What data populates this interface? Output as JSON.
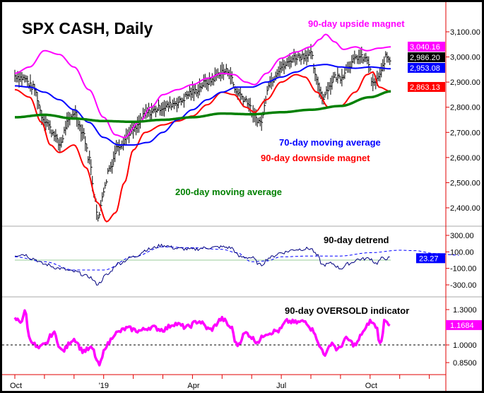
{
  "chart_data": [
    {
      "type": "line",
      "title": "SPX CASH, Daily",
      "x_unit": "months since Oct 2018",
      "xticks": [
        {
          "m": 0,
          "label": "Oct"
        },
        {
          "m": 3,
          "label": "'19"
        },
        {
          "m": 6,
          "label": "Apr"
        },
        {
          "m": 9,
          "label": "Jul"
        },
        {
          "m": 12,
          "label": "Oct"
        }
      ],
      "ylim": [
        2330,
        3130
      ],
      "yticks": [
        "2,400.00",
        "2,500.00",
        "2,600.00",
        "2,700.00",
        "2,800.00",
        "2,900.00",
        "3,000.00",
        "3,100.00"
      ],
      "ytick_values": [
        2400,
        2500,
        2600,
        2700,
        2800,
        2900,
        3000,
        3100
      ],
      "annotations": [
        "90-day upside magnet",
        "70-day moving average",
        "90-day downside magnet",
        "200-day moving average"
      ],
      "last_values": [
        {
          "label": "3,040.16",
          "color": "#ff00ff"
        },
        {
          "label": "2,986.20",
          "color": "#000000"
        },
        {
          "label": "2,953.08",
          "color": "#0000ff"
        },
        {
          "label": "2,863.13",
          "color": "#ff0000"
        }
      ],
      "series": [
        {
          "name": "SPX price",
          "color": "#000000",
          "points": [
            [
              0,
              2925
            ],
            [
              0.3,
              2915
            ],
            [
              0.6,
              2880
            ],
            [
              1,
              2750
            ],
            [
              1.3,
              2700
            ],
            [
              1.5,
              2650
            ],
            [
              1.8,
              2740
            ],
            [
              2,
              2780
            ],
            [
              2.3,
              2700
            ],
            [
              2.5,
              2600
            ],
            [
              2.7,
              2450
            ],
            [
              2.8,
              2350
            ],
            [
              3.0,
              2470
            ],
            [
              3.2,
              2560
            ],
            [
              3.5,
              2650
            ],
            [
              4,
              2710
            ],
            [
              4.5,
              2780
            ],
            [
              5,
              2800
            ],
            [
              5.5,
              2820
            ],
            [
              6,
              2860
            ],
            [
              6.5,
              2900
            ],
            [
              7,
              2940
            ],
            [
              7.2,
              2945
            ],
            [
              7.5,
              2860
            ],
            [
              7.8,
              2830
            ],
            [
              8.1,
              2760
            ],
            [
              8.3,
              2740
            ],
            [
              8.6,
              2900
            ],
            [
              9,
              2960
            ],
            [
              9.5,
              3000
            ],
            [
              10,
              3010
            ],
            [
              10.2,
              2900
            ],
            [
              10.4,
              2840
            ],
            [
              10.6,
              2880
            ],
            [
              10.8,
              2920
            ],
            [
              11,
              2920
            ],
            [
              11.3,
              2970
            ],
            [
              11.6,
              3000
            ],
            [
              11.9,
              2990
            ],
            [
              12.1,
              2890
            ],
            [
              12.3,
              2920
            ],
            [
              12.55,
              3000
            ],
            [
              12.7,
              2986
            ]
          ]
        },
        {
          "name": "90-day upside magnet",
          "color": "#ff00ff",
          "points": [
            [
              0,
              2935
            ],
            [
              0.5,
              2960
            ],
            [
              1,
              3025
            ],
            [
              1.5,
              3010
            ],
            [
              2,
              2960
            ],
            [
              2.5,
              2870
            ],
            [
              3,
              2760
            ],
            [
              3.4,
              2690
            ],
            [
              3.7,
              2680
            ],
            [
              4.2,
              2740
            ],
            [
              4.6,
              2800
            ],
            [
              5,
              2850
            ],
            [
              5.5,
              2870
            ],
            [
              6,
              2890
            ],
            [
              6.5,
              2915
            ],
            [
              7,
              2935
            ],
            [
              7.4,
              2930
            ],
            [
              7.8,
              2900
            ],
            [
              8.1,
              2890
            ],
            [
              8.5,
              2935
            ],
            [
              9,
              2995
            ],
            [
              9.5,
              3020
            ],
            [
              10,
              3040
            ],
            [
              10.3,
              3070
            ],
            [
              10.5,
              3090
            ],
            [
              10.8,
              3060
            ],
            [
              11.1,
              3030
            ],
            [
              11.5,
              3040
            ],
            [
              11.9,
              3025
            ],
            [
              12.3,
              3035
            ],
            [
              12.7,
              3040
            ]
          ]
        },
        {
          "name": "90-day downside magnet",
          "color": "#ff0000",
          "points": [
            [
              0,
              2870
            ],
            [
              0.5,
              2840
            ],
            [
              0.9,
              2740
            ],
            [
              1.2,
              2650
            ],
            [
              1.5,
              2620
            ],
            [
              2,
              2650
            ],
            [
              2.4,
              2560
            ],
            [
              2.8,
              2420
            ],
            [
              3.1,
              2345
            ],
            [
              3.4,
              2380
            ],
            [
              3.7,
              2500
            ],
            [
              4,
              2630
            ],
            [
              4.4,
              2700
            ],
            [
              5,
              2730
            ],
            [
              5.5,
              2745
            ],
            [
              6,
              2765
            ],
            [
              6.5,
              2810
            ],
            [
              7,
              2860
            ],
            [
              7.4,
              2850
            ],
            [
              7.8,
              2800
            ],
            [
              8.1,
              2780
            ],
            [
              8.5,
              2830
            ],
            [
              9,
              2900
            ],
            [
              9.5,
              2930
            ],
            [
              9.8,
              2920
            ],
            [
              10.2,
              2860
            ],
            [
              10.6,
              2800
            ],
            [
              11,
              2805
            ],
            [
              11.5,
              2860
            ],
            [
              11.9,
              2930
            ],
            [
              12.1,
              2940
            ],
            [
              12.3,
              2880
            ],
            [
              12.7,
              2863
            ]
          ]
        },
        {
          "name": "70-day moving average",
          "color": "#0000ff",
          "points": [
            [
              0,
              2885
            ],
            [
              0.5,
              2880
            ],
            [
              1,
              2860
            ],
            [
              1.5,
              2830
            ],
            [
              2,
              2790
            ],
            [
              2.5,
              2740
            ],
            [
              3,
              2680
            ],
            [
              3.5,
              2650
            ],
            [
              4,
              2650
            ],
            [
              4.5,
              2660
            ],
            [
              5,
              2700
            ],
            [
              5.5,
              2750
            ],
            [
              6,
              2790
            ],
            [
              6.5,
              2830
            ],
            [
              7,
              2860
            ],
            [
              7.5,
              2880
            ],
            [
              8,
              2880
            ],
            [
              8.5,
              2900
            ],
            [
              9,
              2920
            ],
            [
              9.5,
              2940
            ],
            [
              10,
              2965
            ],
            [
              10.5,
              2970
            ],
            [
              11,
              2960
            ],
            [
              11.5,
              2955
            ],
            [
              12,
              2960
            ],
            [
              12.7,
              2953
            ]
          ]
        },
        {
          "name": "200-day moving average",
          "color": "#008000",
          "points": [
            [
              0,
              2760
            ],
            [
              1,
              2770
            ],
            [
              2,
              2755
            ],
            [
              3,
              2745
            ],
            [
              4,
              2742
            ],
            [
              5,
              2750
            ],
            [
              6,
              2760
            ],
            [
              7,
              2775
            ],
            [
              8,
              2772
            ],
            [
              9,
              2780
            ],
            [
              10,
              2790
            ],
            [
              11,
              2805
            ],
            [
              12,
              2840
            ],
            [
              12.7,
              2863
            ]
          ]
        }
      ]
    },
    {
      "type": "line",
      "title": "90-day detrend",
      "ylim": [
        -420,
        360
      ],
      "yticks": [
        "300.00",
        "100.00",
        "-100.00",
        "-300.00"
      ],
      "ytick_values": [
        300,
        100,
        -100,
        -300
      ],
      "last_value": {
        "label": "23.27",
        "color": "#0000ff"
      },
      "series": [
        {
          "name": "detrend",
          "color": "#000080",
          "points": [
            [
              0,
              60
            ],
            [
              0.3,
              70
            ],
            [
              0.6,
              20
            ],
            [
              1,
              -50
            ],
            [
              1.5,
              -100
            ],
            [
              2,
              -140
            ],
            [
              2.5,
              -200
            ],
            [
              2.8,
              -290
            ],
            [
              3.1,
              -180
            ],
            [
              3.5,
              -40
            ],
            [
              4,
              40
            ],
            [
              4.5,
              130
            ],
            [
              5,
              180
            ],
            [
              5.5,
              140
            ],
            [
              6,
              130
            ],
            [
              6.5,
              150
            ],
            [
              7,
              160
            ],
            [
              7.3,
              150
            ],
            [
              7.6,
              40
            ],
            [
              8,
              30
            ],
            [
              8.3,
              -60
            ],
            [
              8.6,
              30
            ],
            [
              9,
              90
            ],
            [
              9.5,
              130
            ],
            [
              10,
              140
            ],
            [
              10.2,
              60
            ],
            [
              10.4,
              -60
            ],
            [
              10.7,
              -40
            ],
            [
              11,
              -100
            ],
            [
              11.3,
              -40
            ],
            [
              11.6,
              10
            ],
            [
              12,
              20
            ],
            [
              12.2,
              -40
            ],
            [
              12.4,
              20
            ],
            [
              12.7,
              23
            ]
          ]
        },
        {
          "name": "detrend forecast",
          "color": "#0000ff",
          "dashed": true,
          "points": [
            [
              0,
              40
            ],
            [
              1,
              -20
            ],
            [
              2,
              -120
            ],
            [
              3,
              -120
            ],
            [
              4,
              40
            ],
            [
              5,
              160
            ],
            [
              6,
              150
            ],
            [
              7,
              130
            ],
            [
              7.5,
              90
            ],
            [
              8,
              -20
            ],
            [
              8.5,
              -10
            ],
            [
              9,
              40
            ],
            [
              10,
              50
            ],
            [
              11,
              50
            ],
            [
              12,
              90
            ],
            [
              13,
              120
            ],
            [
              13.5,
              115
            ],
            [
              14.2,
              80
            ],
            [
              15,
              60
            ]
          ]
        }
      ]
    },
    {
      "type": "line",
      "title": "90-day OVERSOLD indicator",
      "ylim": [
        0.78,
        1.39
      ],
      "yticks": [
        "1.3000",
        "1.0000",
        "0.8500"
      ],
      "ytick_values": [
        1.3,
        1.0,
        0.85
      ],
      "reference_line": 1.0,
      "last_value": {
        "label": "1.1684",
        "color": "#ff00ff"
      },
      "series": [
        {
          "name": "oversold",
          "color": "#ff00ff",
          "points": [
            [
              0,
              1.22
            ],
            [
              0.2,
              1.2
            ],
            [
              0.35,
              1.28
            ],
            [
              0.5,
              1.05
            ],
            [
              0.8,
              0.97
            ],
            [
              1,
              1.0
            ],
            [
              1.3,
              1.1
            ],
            [
              1.6,
              0.95
            ],
            [
              2,
              1.05
            ],
            [
              2.3,
              0.95
            ],
            [
              2.6,
              0.97
            ],
            [
              2.85,
              0.83
            ],
            [
              3.1,
              1.0
            ],
            [
              3.4,
              1.1
            ],
            [
              3.8,
              1.14
            ],
            [
              4.2,
              1.12
            ],
            [
              4.6,
              1.15
            ],
            [
              5,
              1.13
            ],
            [
              5.4,
              1.18
            ],
            [
              5.8,
              1.15
            ],
            [
              6.2,
              1.2
            ],
            [
              6.6,
              1.13
            ],
            [
              7,
              1.22
            ],
            [
              7.3,
              1.15
            ],
            [
              7.5,
              1.0
            ],
            [
              7.8,
              1.1
            ],
            [
              8.2,
              1.03
            ],
            [
              8.5,
              1.1
            ],
            [
              8.9,
              1.12
            ],
            [
              9.2,
              1.2
            ],
            [
              9.5,
              1.19
            ],
            [
              9.8,
              1.2
            ],
            [
              10.1,
              1.12
            ],
            [
              10.3,
              0.98
            ],
            [
              10.5,
              0.92
            ],
            [
              10.7,
              1.02
            ],
            [
              10.9,
              0.96
            ],
            [
              11.2,
              1.05
            ],
            [
              11.5,
              1.0
            ],
            [
              11.8,
              1.12
            ],
            [
              12,
              1.2
            ],
            [
              12.2,
              1.16
            ],
            [
              12.35,
              1.0
            ],
            [
              12.5,
              1.22
            ],
            [
              12.7,
              1.17
            ]
          ]
        }
      ]
    }
  ]
}
